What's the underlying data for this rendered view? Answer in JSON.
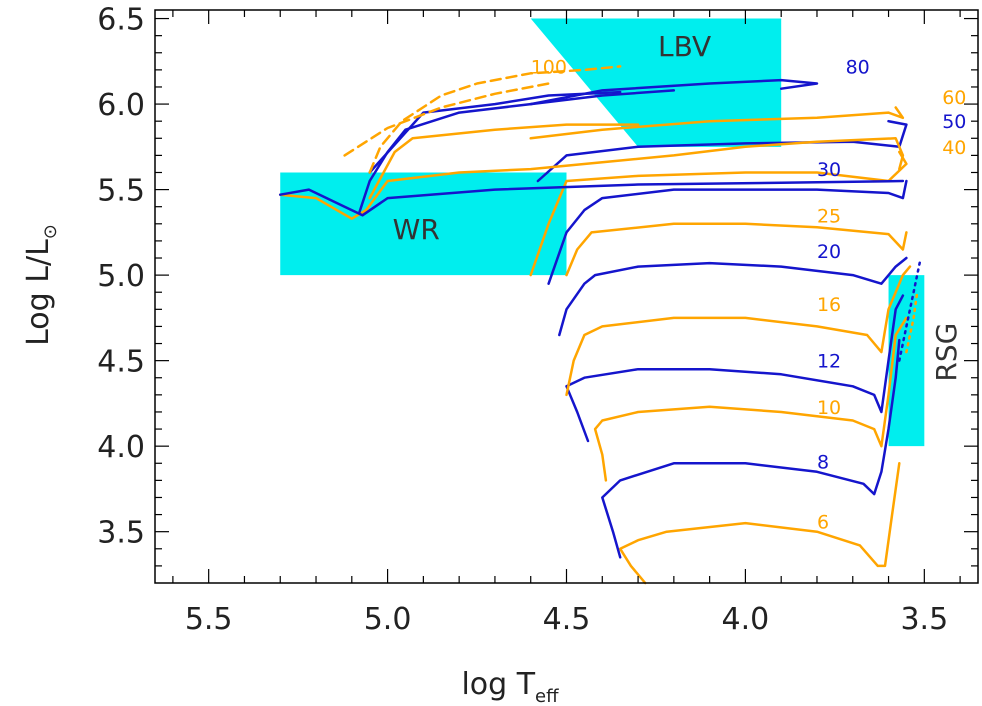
{
  "chart_data": {
    "type": "line",
    "xlabel": "log T",
    "xlabel_sub": "eff",
    "ylabel": "Log L/L",
    "ylabel_sub": "⊙",
    "xlim": [
      5.65,
      3.35
    ],
    "ylim": [
      3.2,
      6.55
    ],
    "xticks": [
      {
        "v": 5.5,
        "label": "5.5"
      },
      {
        "v": 5.0,
        "label": "5.0"
      },
      {
        "v": 4.5,
        "label": "4.5"
      },
      {
        "v": 4.0,
        "label": "4.0"
      },
      {
        "v": 3.5,
        "label": "3.5"
      }
    ],
    "yticks": [
      {
        "v": 3.5,
        "label": "3.5"
      },
      {
        "v": 4.0,
        "label": "4.0"
      },
      {
        "v": 4.5,
        "label": "4.5"
      },
      {
        "v": 5.0,
        "label": "5.0"
      },
      {
        "v": 5.5,
        "label": "5.5"
      },
      {
        "v": 6.0,
        "label": "6.0"
      },
      {
        "v": 6.5,
        "label": "6.5"
      }
    ],
    "colors": {
      "blue": "#1515cc",
      "orange": "#ffa500",
      "region": "#00eeee"
    },
    "regions": [
      {
        "name": "WR",
        "label": "WR",
        "points": [
          [
            5.3,
            5.0
          ],
          [
            4.5,
            5.0
          ],
          [
            4.5,
            5.6
          ],
          [
            5.3,
            5.6
          ]
        ],
        "label_at": [
          4.92,
          5.27
        ]
      },
      {
        "name": "LBV",
        "label": "LBV",
        "points": [
          [
            4.6,
            6.5
          ],
          [
            3.9,
            6.5
          ],
          [
            3.9,
            5.75
          ],
          [
            4.3,
            5.75
          ]
        ],
        "label_at": [
          4.17,
          6.34
        ]
      },
      {
        "name": "RSG",
        "label": "RSG",
        "points": [
          [
            3.6,
            4.0
          ],
          [
            3.5,
            4.0
          ],
          [
            3.5,
            5.0
          ],
          [
            3.6,
            5.0
          ]
        ],
        "label_at": [
          3.44,
          4.55
        ],
        "rotate": true
      }
    ],
    "mass_labels": [
      {
        "text": "100",
        "x": 4.6,
        "y": 6.22,
        "color": "orange"
      },
      {
        "text": "80",
        "x": 3.72,
        "y": 6.22,
        "color": "blue"
      },
      {
        "text": "60",
        "x": 3.45,
        "y": 6.04,
        "color": "orange"
      },
      {
        "text": "50",
        "x": 3.45,
        "y": 5.9,
        "color": "blue"
      },
      {
        "text": "40",
        "x": 3.45,
        "y": 5.75,
        "color": "orange"
      },
      {
        "text": "30",
        "x": 3.8,
        "y": 5.62,
        "color": "blue"
      },
      {
        "text": "25",
        "x": 3.8,
        "y": 5.35,
        "color": "orange"
      },
      {
        "text": "20",
        "x": 3.8,
        "y": 5.14,
        "color": "blue"
      },
      {
        "text": "16",
        "x": 3.8,
        "y": 4.83,
        "color": "orange"
      },
      {
        "text": "12",
        "x": 3.8,
        "y": 4.5,
        "color": "blue"
      },
      {
        "text": "10",
        "x": 3.8,
        "y": 4.23,
        "color": "orange"
      },
      {
        "text": "8",
        "x": 3.8,
        "y": 3.91,
        "color": "blue"
      },
      {
        "text": "6",
        "x": 3.8,
        "y": 3.56,
        "color": "orange"
      }
    ],
    "series": [
      {
        "name": "6",
        "color": "orange",
        "points": [
          [
            4.28,
            3.2
          ],
          [
            4.32,
            3.3
          ],
          [
            4.35,
            3.4
          ],
          [
            4.3,
            3.45
          ],
          [
            4.22,
            3.5
          ],
          [
            4.0,
            3.55
          ],
          [
            3.8,
            3.5
          ],
          [
            3.68,
            3.42
          ],
          [
            3.63,
            3.3
          ],
          [
            3.61,
            3.3
          ],
          [
            3.59,
            3.6
          ],
          [
            3.57,
            3.9
          ]
        ]
      },
      {
        "name": "8",
        "color": "blue",
        "points": [
          [
            4.35,
            3.35
          ],
          [
            4.37,
            3.5
          ],
          [
            4.4,
            3.7
          ],
          [
            4.35,
            3.8
          ],
          [
            4.2,
            3.9
          ],
          [
            4.0,
            3.9
          ],
          [
            3.8,
            3.85
          ],
          [
            3.67,
            3.78
          ],
          [
            3.64,
            3.72
          ],
          [
            3.62,
            3.85
          ],
          [
            3.6,
            4.1
          ],
          [
            3.58,
            4.4
          ],
          [
            3.57,
            4.62
          ]
        ]
      },
      {
        "name": "10",
        "color": "orange",
        "points": [
          [
            4.39,
            3.8
          ],
          [
            4.4,
            3.95
          ],
          [
            4.42,
            4.1
          ],
          [
            4.4,
            4.15
          ],
          [
            4.3,
            4.2
          ],
          [
            4.1,
            4.23
          ],
          [
            3.9,
            4.2
          ],
          [
            3.7,
            4.15
          ],
          [
            3.64,
            4.1
          ],
          [
            3.62,
            4.0
          ],
          [
            3.6,
            4.3
          ],
          [
            3.58,
            4.65
          ],
          [
            3.55,
            4.75
          ]
        ]
      },
      {
        "name": "12",
        "color": "blue",
        "points": [
          [
            4.44,
            4.03
          ],
          [
            4.47,
            4.2
          ],
          [
            4.5,
            4.35
          ],
          [
            4.45,
            4.4
          ],
          [
            4.3,
            4.45
          ],
          [
            4.1,
            4.45
          ],
          [
            3.9,
            4.42
          ],
          [
            3.7,
            4.35
          ],
          [
            3.64,
            4.3
          ],
          [
            3.62,
            4.2
          ],
          [
            3.6,
            4.5
          ],
          [
            3.58,
            4.8
          ],
          [
            3.56,
            4.88
          ]
        ]
      },
      {
        "name": "16",
        "color": "orange",
        "points": [
          [
            4.5,
            4.3
          ],
          [
            4.48,
            4.5
          ],
          [
            4.45,
            4.65
          ],
          [
            4.4,
            4.7
          ],
          [
            4.2,
            4.75
          ],
          [
            4.0,
            4.75
          ],
          [
            3.8,
            4.7
          ],
          [
            3.66,
            4.65
          ],
          [
            3.62,
            4.55
          ],
          [
            3.6,
            4.8
          ],
          [
            3.56,
            5.0
          ],
          [
            3.54,
            5.05
          ]
        ]
      },
      {
        "name": "20",
        "color": "blue",
        "points": [
          [
            4.52,
            4.65
          ],
          [
            4.5,
            4.8
          ],
          [
            4.45,
            4.95
          ],
          [
            4.42,
            5.0
          ],
          [
            4.3,
            5.05
          ],
          [
            4.1,
            5.07
          ],
          [
            3.9,
            5.05
          ],
          [
            3.7,
            5.0
          ],
          [
            3.62,
            4.95
          ],
          [
            3.58,
            5.05
          ],
          [
            3.55,
            5.1
          ]
        ]
      },
      {
        "name": "25",
        "color": "orange",
        "points": [
          [
            4.5,
            5.0
          ],
          [
            4.47,
            5.15
          ],
          [
            4.43,
            5.25
          ],
          [
            4.2,
            5.3
          ],
          [
            4.0,
            5.3
          ],
          [
            3.8,
            5.28
          ],
          [
            3.6,
            5.24
          ],
          [
            3.56,
            5.15
          ],
          [
            3.55,
            5.25
          ]
        ]
      },
      {
        "name": "30",
        "color": "blue",
        "points": [
          [
            4.55,
            4.95
          ],
          [
            4.5,
            5.25
          ],
          [
            4.45,
            5.38
          ],
          [
            4.4,
            5.45
          ],
          [
            4.2,
            5.5
          ],
          [
            4.0,
            5.5
          ],
          [
            3.8,
            5.5
          ],
          [
            3.6,
            5.48
          ],
          [
            3.56,
            5.45
          ],
          [
            3.55,
            5.55
          ]
        ]
      },
      {
        "name": "40",
        "color": "orange",
        "points": [
          [
            4.6,
            5.0
          ],
          [
            4.55,
            5.3
          ],
          [
            4.5,
            5.55
          ],
          [
            4.3,
            5.58
          ],
          [
            4.0,
            5.6
          ],
          [
            3.8,
            5.6
          ],
          [
            3.6,
            5.55
          ],
          [
            3.55,
            5.65
          ],
          [
            3.57,
            5.72
          ]
        ]
      },
      {
        "name": "50",
        "color": "blue",
        "points": [
          [
            4.58,
            5.55
          ],
          [
            4.5,
            5.7
          ],
          [
            4.3,
            5.75
          ],
          [
            4.0,
            5.77
          ],
          [
            3.7,
            5.78
          ],
          [
            3.57,
            5.75
          ],
          [
            3.55,
            5.88
          ],
          [
            3.6,
            5.9
          ]
        ]
      },
      {
        "name": "60",
        "color": "orange",
        "points": [
          [
            4.6,
            5.8
          ],
          [
            4.4,
            5.85
          ],
          [
            4.1,
            5.9
          ],
          [
            3.8,
            5.92
          ],
          [
            3.6,
            5.95
          ],
          [
            3.56,
            5.92
          ],
          [
            3.58,
            5.98
          ]
        ]
      },
      {
        "name": "80",
        "color": "blue",
        "points": [
          [
            4.6,
            6.0
          ],
          [
            4.4,
            6.08
          ],
          [
            4.1,
            6.12
          ],
          [
            3.9,
            6.14
          ],
          [
            3.8,
            6.12
          ],
          [
            3.9,
            6.09
          ]
        ]
      },
      {
        "name": "orange-walk-1",
        "color": "orange",
        "points": [
          [
            5.3,
            5.47
          ],
          [
            5.2,
            5.45
          ],
          [
            5.1,
            5.33
          ],
          [
            5.06,
            5.38
          ],
          [
            5.0,
            5.55
          ],
          [
            4.8,
            5.6
          ],
          [
            4.6,
            5.62
          ],
          [
            4.4,
            5.66
          ],
          [
            4.2,
            5.7
          ],
          [
            4.0,
            5.75
          ],
          [
            3.8,
            5.78
          ],
          [
            3.58,
            5.8
          ],
          [
            3.56,
            5.7
          ],
          [
            3.57,
            5.62
          ]
        ]
      },
      {
        "name": "orange-walk-2",
        "color": "orange",
        "points": [
          [
            5.05,
            5.45
          ],
          [
            4.98,
            5.72
          ],
          [
            4.93,
            5.8
          ],
          [
            4.7,
            5.85
          ],
          [
            4.5,
            5.88
          ],
          [
            4.3,
            5.88
          ]
        ]
      },
      {
        "name": "blue-walk-1",
        "color": "blue",
        "points": [
          [
            5.3,
            5.47
          ],
          [
            5.22,
            5.5
          ],
          [
            5.12,
            5.4
          ],
          [
            5.07,
            5.35
          ],
          [
            5.0,
            5.45
          ],
          [
            4.7,
            5.5
          ],
          [
            4.3,
            5.53
          ],
          [
            3.9,
            5.54
          ],
          [
            3.56,
            5.55
          ]
        ]
      },
      {
        "name": "blue-walk-2",
        "color": "blue",
        "points": [
          [
            5.08,
            5.36
          ],
          [
            5.05,
            5.55
          ],
          [
            5.0,
            5.72
          ],
          [
            4.95,
            5.85
          ],
          [
            4.8,
            5.95
          ],
          [
            4.6,
            6.0
          ],
          [
            4.4,
            6.05
          ],
          [
            4.2,
            6.08
          ]
        ]
      },
      {
        "name": "blue-walk-3",
        "color": "blue",
        "points": [
          [
            5.05,
            5.6
          ],
          [
            4.9,
            5.95
          ],
          [
            4.7,
            6.0
          ],
          [
            4.55,
            6.05
          ],
          [
            4.35,
            6.07
          ]
        ]
      }
    ],
    "dashed_series": [
      {
        "name": "100",
        "color": "orange",
        "points": [
          [
            5.05,
            5.6
          ],
          [
            5.02,
            5.75
          ],
          [
            4.96,
            5.9
          ],
          [
            4.85,
            6.05
          ],
          [
            4.75,
            6.12
          ],
          [
            4.6,
            6.18
          ],
          [
            4.45,
            6.2
          ],
          [
            4.35,
            6.22
          ]
        ]
      },
      {
        "name": "100b",
        "color": "orange",
        "points": [
          [
            5.12,
            5.7
          ],
          [
            5.0,
            5.86
          ],
          [
            4.85,
            5.98
          ],
          [
            4.7,
            6.06
          ],
          [
            4.55,
            6.12
          ]
        ]
      }
    ],
    "dotted_series": [
      {
        "name": "rsg-blue",
        "color": "blue",
        "points": [
          [
            3.57,
            4.5
          ],
          [
            3.55,
            4.7
          ],
          [
            3.53,
            4.9
          ],
          [
            3.51,
            5.1
          ]
        ]
      },
      {
        "name": "rsg-orange",
        "color": "orange",
        "points": [
          [
            3.55,
            4.55
          ],
          [
            3.53,
            4.75
          ],
          [
            3.52,
            4.9
          ]
        ]
      }
    ]
  }
}
